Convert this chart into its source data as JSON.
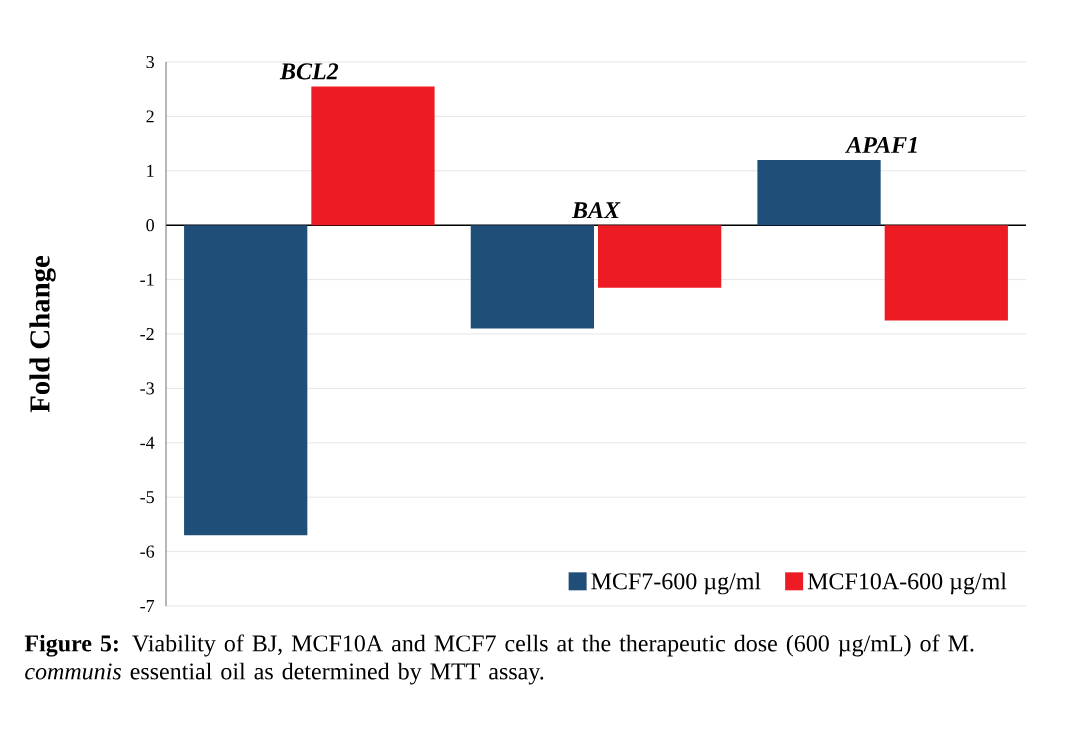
{
  "chart_data": {
    "type": "bar",
    "ylabel": "Fold Change",
    "categories": [
      "BCL2",
      "BAX",
      "APAF1"
    ],
    "series": [
      {
        "name": "MCF7-600 µg/ml",
        "color": "#1f4e79",
        "values": [
          -5.7,
          -1.9,
          1.2
        ]
      },
      {
        "name": "MCF10A-600 µg/ml",
        "color": "#ed1c24",
        "values": [
          2.55,
          -1.15,
          -1.75
        ]
      }
    ],
    "ylim": [
      -7,
      3
    ],
    "yticks": [
      -7,
      -6,
      -5,
      -4,
      -3,
      -2,
      -1,
      0,
      1,
      2,
      3
    ],
    "grid": "y",
    "legend": "bottom right",
    "annotations": [
      "**Figure 5:** Viability of BJ, MCF10A and MCF7 cells at the therapeutic dose (600 µg/mL) of M. *communis* essential oil as determined by MTT assay."
    ]
  }
}
